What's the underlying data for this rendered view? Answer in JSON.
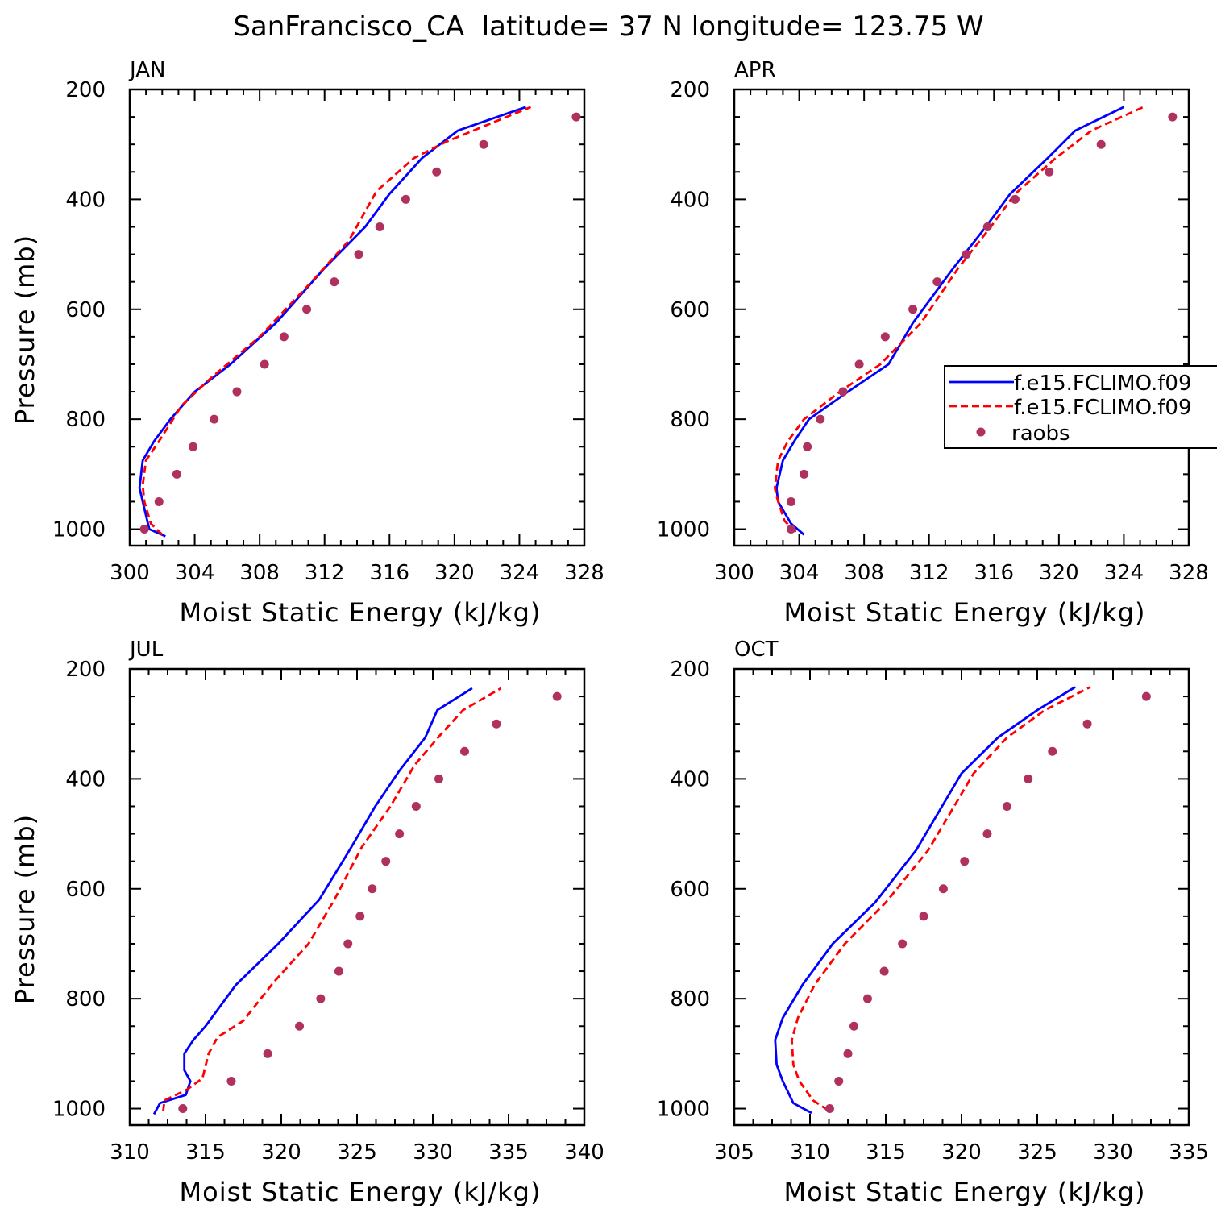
{
  "title": "SanFrancisco_CA  latitude= 37 N longitude= 123.75 W",
  "colors": {
    "model1": "#0000ff",
    "model2": "#ff0000",
    "raobs": "#b03060",
    "axis": "#000000"
  },
  "legend": {
    "panel": "APR",
    "placement": "right-middle",
    "entries": [
      "f.e15.FCLIMO.f09",
      "f.e15.FCLIMO.f09",
      "raobs"
    ]
  },
  "chart_data": [
    {
      "type": "line",
      "panel_label": "JAN",
      "xlabel": "Moist Static Energy (kJ/kg)",
      "ylabel": "Pressure (mb)",
      "xlim": [
        300,
        328
      ],
      "ylim": [
        1030,
        200
      ],
      "xticks": [
        300,
        304,
        308,
        312,
        316,
        320,
        324,
        328
      ],
      "yticks": [
        200,
        400,
        600,
        800,
        1000
      ],
      "series": [
        {
          "name": "f.e15.FCLIMO.f09",
          "style": "solid",
          "x": [
            302.2,
            301.2,
            300.8,
            300.6,
            300.8,
            301.5,
            302.5,
            304.0,
            306.2,
            309.0,
            312.0,
            314.5,
            316.0,
            318.0,
            320.2,
            324.4
          ],
          "y": [
            1013,
            1000,
            950,
            925,
            875,
            840,
            800,
            750,
            700,
            625,
            525,
            450,
            390,
            325,
            275,
            232
          ]
        },
        {
          "name": "f.e15.FCLIMO.f09",
          "style": "dashed",
          "x": [
            302.0,
            301.3,
            300.9,
            300.8,
            301.0,
            301.8,
            303.2,
            305.0,
            308.0,
            311.2,
            313.5,
            315.2,
            317.5,
            319.5,
            324.7
          ],
          "y": [
            1010,
            990,
            950,
            920,
            875,
            840,
            775,
            725,
            650,
            550,
            475,
            385,
            325,
            295,
            232
          ]
        },
        {
          "name": "raobs",
          "style": "markers",
          "x": [
            300.9,
            301.8,
            302.9,
            303.9,
            305.2,
            306.6,
            308.3,
            309.5,
            310.9,
            312.6,
            314.1,
            315.4,
            317.0,
            318.9,
            321.8,
            327.5
          ],
          "y": [
            1000,
            950,
            900,
            850,
            800,
            750,
            700,
            650,
            600,
            550,
            500,
            450,
            400,
            350,
            300,
            250
          ]
        }
      ]
    },
    {
      "type": "line",
      "panel_label": "APR",
      "xlabel": "Moist Static Energy (kJ/kg)",
      "ylabel": "",
      "xlim": [
        300,
        328
      ],
      "ylim": [
        1030,
        200
      ],
      "xticks": [
        300,
        304,
        308,
        312,
        316,
        320,
        324,
        328
      ],
      "yticks": [
        200,
        400,
        600,
        800,
        1000
      ],
      "series": [
        {
          "name": "f.e15.FCLIMO.f09",
          "style": "solid",
          "x": [
            304.3,
            303.5,
            302.7,
            302.6,
            303.0,
            303.7,
            304.6,
            307.0,
            309.5,
            311.0,
            313.5,
            315.5,
            317.0,
            319.3,
            321.0,
            324.0
          ],
          "y": [
            1010,
            990,
            950,
            925,
            875,
            840,
            800,
            750,
            700,
            625,
            525,
            450,
            390,
            325,
            275,
            232
          ]
        },
        {
          "name": "f.e15.FCLIMO.f09",
          "style": "dashed",
          "x": [
            303.8,
            303.1,
            302.6,
            302.5,
            302.7,
            303.3,
            304.3,
            306.5,
            309.0,
            311.5,
            313.8,
            315.8,
            317.3,
            319.8,
            322.0,
            325.2
          ],
          "y": [
            1005,
            985,
            940,
            925,
            875,
            840,
            800,
            750,
            700,
            625,
            525,
            450,
            390,
            325,
            275,
            232
          ]
        },
        {
          "name": "raobs",
          "style": "markers",
          "x": [
            303.5,
            303.5,
            304.3,
            304.5,
            305.3,
            306.7,
            307.7,
            309.3,
            311.0,
            312.5,
            314.3,
            315.6,
            317.3,
            319.4,
            322.6,
            327.0
          ],
          "y": [
            1000,
            950,
            900,
            850,
            800,
            750,
            700,
            650,
            600,
            550,
            500,
            450,
            400,
            350,
            300,
            250
          ]
        }
      ]
    },
    {
      "type": "line",
      "panel_label": "JUL",
      "xlabel": "Moist Static Energy (kJ/kg)",
      "ylabel": "Pressure (mb)",
      "xlim": [
        310,
        340
      ],
      "ylim": [
        1030,
        200
      ],
      "xticks": [
        310,
        315,
        320,
        325,
        330,
        335,
        340
      ],
      "yticks": [
        200,
        400,
        600,
        800,
        1000
      ],
      "series": [
        {
          "name": "f.e15.FCLIMO.f09",
          "style": "solid",
          "x": [
            311.6,
            312.0,
            313.7,
            314.0,
            313.6,
            313.6,
            314.2,
            315.0,
            317.0,
            319.8,
            322.5,
            324.5,
            326.2,
            327.8,
            329.5,
            330.3,
            332.6
          ],
          "y": [
            1010,
            990,
            975,
            950,
            930,
            900,
            875,
            850,
            775,
            700,
            620,
            530,
            450,
            385,
            325,
            275,
            235
          ]
        },
        {
          "name": "f.e15.FCLIMO.f09",
          "style": "dashed",
          "x": [
            312.2,
            312.3,
            313.8,
            314.8,
            315.2,
            315.8,
            317.5,
            319.5,
            321.8,
            323.5,
            325.3,
            327.2,
            328.8,
            330.5,
            332.0,
            334.5
          ],
          "y": [
            1005,
            985,
            965,
            945,
            900,
            870,
            840,
            770,
            700,
            620,
            525,
            450,
            375,
            320,
            275,
            235
          ]
        },
        {
          "name": "raobs",
          "style": "markers",
          "x": [
            313.5,
            316.7,
            319.1,
            321.2,
            322.6,
            323.8,
            324.4,
            325.2,
            326.0,
            326.9,
            327.8,
            328.9,
            330.4,
            332.1,
            334.2,
            338.2
          ],
          "y": [
            1000,
            950,
            900,
            850,
            800,
            750,
            700,
            650,
            600,
            550,
            500,
            450,
            400,
            350,
            300,
            250
          ]
        }
      ]
    },
    {
      "type": "line",
      "panel_label": "OCT",
      "xlabel": "Moist Static Energy (kJ/kg)",
      "ylabel": "",
      "xlim": [
        305,
        335
      ],
      "ylim": [
        1030,
        200
      ],
      "xticks": [
        305,
        310,
        315,
        320,
        325,
        330,
        335
      ],
      "yticks": [
        200,
        400,
        600,
        800,
        1000
      ],
      "series": [
        {
          "name": "f.e15.FCLIMO.f09",
          "style": "solid",
          "x": [
            310.1,
            308.9,
            308.2,
            307.8,
            307.7,
            308.2,
            309.5,
            311.5,
            314.3,
            317.0,
            320.0,
            322.4,
            325.0,
            327.5
          ],
          "y": [
            1008,
            990,
            950,
            920,
            875,
            835,
            775,
            700,
            625,
            530,
            390,
            325,
            275,
            233
          ]
        },
        {
          "name": "f.e15.FCLIMO.f09",
          "style": "dashed",
          "x": [
            311.2,
            310.2,
            309.3,
            308.9,
            308.8,
            309.2,
            310.3,
            312.3,
            315.0,
            317.8,
            320.8,
            323.0,
            325.5,
            328.5
          ],
          "y": [
            1003,
            985,
            950,
            920,
            875,
            835,
            775,
            700,
            625,
            530,
            390,
            325,
            275,
            233
          ]
        },
        {
          "name": "raobs",
          "style": "markers",
          "x": [
            311.3,
            311.9,
            312.5,
            312.9,
            313.8,
            314.9,
            316.1,
            317.5,
            318.8,
            320.2,
            321.7,
            323.0,
            324.4,
            326.0,
            328.3,
            332.2
          ],
          "y": [
            1000,
            950,
            900,
            850,
            800,
            750,
            700,
            650,
            600,
            550,
            500,
            450,
            400,
            350,
            300,
            250
          ]
        }
      ]
    }
  ]
}
